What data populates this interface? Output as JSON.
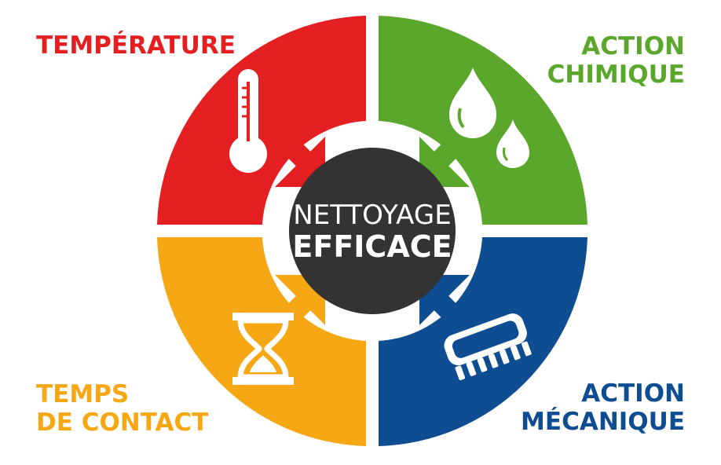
{
  "diagram": {
    "center": {
      "line1": "NETTOYAGE",
      "line2": "EFFICACE",
      "color": "#333333"
    },
    "quadrants": [
      {
        "id": "temperature",
        "label_lines": [
          "TEMPÉRATURE"
        ],
        "color": "#e41f21",
        "icon": "thermometer-icon"
      },
      {
        "id": "action-chimique",
        "label_lines": [
          "ACTION",
          "CHIMIQUE"
        ],
        "color": "#5ba72c",
        "icon": "water-drops-icon"
      },
      {
        "id": "temps-de-contact",
        "label_lines": [
          "TEMPS",
          "DE CONTACT"
        ],
        "color": "#f6a714",
        "icon": "hourglass-icon"
      },
      {
        "id": "action-mecanique",
        "label_lines": [
          "ACTION",
          "MÉCANIQUE"
        ],
        "color": "#0f4d92",
        "icon": "brush-icon"
      }
    ]
  }
}
